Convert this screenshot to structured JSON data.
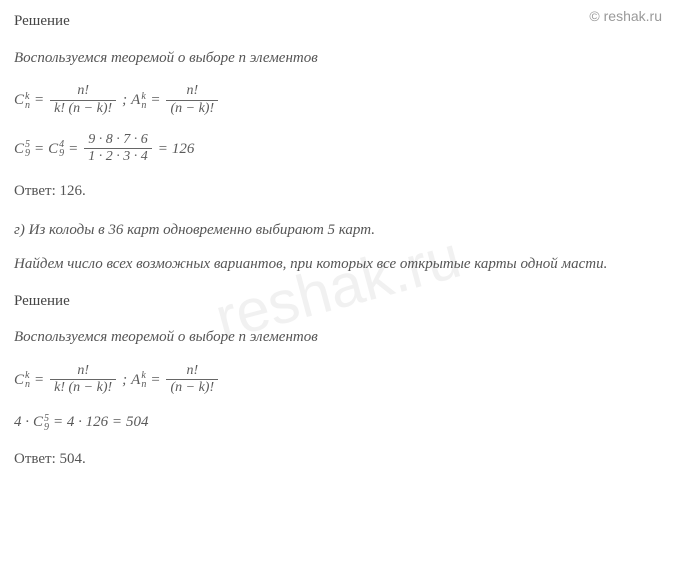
{
  "watermark": {
    "top": "© reshak.ru",
    "center": "reshak.ru"
  },
  "section1": {
    "heading": "Решение",
    "theorem_intro": "Воспользуемся теоремой о выборе ",
    "theorem_n": "n",
    "theorem_rest": " элементов",
    "formula_C": {
      "lhs_base": "C",
      "lhs_sup": "k",
      "lhs_sub": "n",
      "num": "n!",
      "den": "k! (n − k)!"
    },
    "formula_A": {
      "lhs_base": "A",
      "lhs_sup": "k",
      "lhs_sub": "n",
      "num": "n!",
      "den": "(n − k)!"
    },
    "calc": {
      "C1_base": "C",
      "C1_sup": "5",
      "C1_sub": "9",
      "C2_base": "C",
      "C2_sup": "4",
      "C2_sub": "9",
      "frac_num": "9 · 8 · 7 · 6",
      "frac_den": "1 · 2 · 3 · 4",
      "result": "126"
    },
    "answer_label": "Ответ:  ",
    "answer_value": "126."
  },
  "section2": {
    "problem_label": "г) ",
    "problem_text": "Из колоды в 36 карт одновременно выбирают 5 карт.",
    "task_text": "Найдем число всех возможных вариантов, при которых все открытые карты одной масти.",
    "heading": "Решение",
    "theorem_intro": "Воспользуемся теоремой о выборе ",
    "theorem_n": "n",
    "theorem_rest": " элементов",
    "formula_C": {
      "lhs_base": "C",
      "lhs_sup": "k",
      "lhs_sub": "n",
      "num": "n!",
      "den": "k! (n − k)!"
    },
    "formula_A": {
      "lhs_base": "A",
      "lhs_sup": "k",
      "lhs_sub": "n",
      "num": "n!",
      "den": "(n − k)!"
    },
    "calc": {
      "prefix": "4 · ",
      "C_base": "C",
      "C_sup": "5",
      "C_sub": "9",
      "mid": " = 4 · 126 = ",
      "result": "504"
    },
    "answer_label": "Ответ:  ",
    "answer_value": "504."
  },
  "eq": " = ",
  "semicolon": " ;   "
}
